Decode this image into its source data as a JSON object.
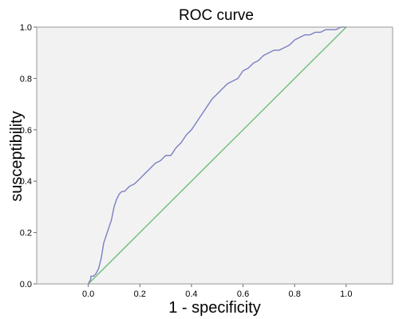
{
  "chart_data": {
    "type": "line",
    "title": "ROC curve",
    "xlabel": "1 - specificity",
    "ylabel": "susceptibility",
    "xlim": [
      -0.2,
      1.18
    ],
    "ylim": [
      0.0,
      1.0
    ],
    "grid": false,
    "x_ticks": [
      "0.0",
      "0.2",
      "0.4",
      "0.6",
      "0.8",
      "1.0"
    ],
    "y_ticks": [
      "0.0",
      "0.2",
      "0.4",
      "0.6",
      "0.8",
      "1.0"
    ],
    "colors": {
      "plot_background": "#f2f2f2",
      "roc_line": "#7b7fc4",
      "reference_line": "#6dbf7a",
      "frame": "#999999"
    },
    "series": [
      {
        "x": [
          0.0,
          0.01,
          0.01,
          0.02,
          0.03,
          0.04,
          0.05,
          0.06,
          0.07,
          0.08,
          0.09,
          0.1,
          0.11,
          0.12,
          0.13,
          0.14,
          0.16,
          0.18,
          0.2,
          0.22,
          0.24,
          0.26,
          0.28,
          0.3,
          0.32,
          0.34,
          0.36,
          0.38,
          0.4,
          0.42,
          0.44,
          0.46,
          0.48,
          0.5,
          0.52,
          0.54,
          0.56,
          0.58,
          0.6,
          0.62,
          0.64,
          0.66,
          0.68,
          0.7,
          0.72,
          0.74,
          0.76,
          0.78,
          0.8,
          0.82,
          0.84,
          0.86,
          0.88,
          0.9,
          0.92,
          0.94,
          0.96,
          0.98,
          1.0
        ],
        "y": [
          0.0,
          0.02,
          0.03,
          0.03,
          0.04,
          0.06,
          0.1,
          0.16,
          0.19,
          0.22,
          0.25,
          0.3,
          0.33,
          0.35,
          0.36,
          0.36,
          0.38,
          0.39,
          0.41,
          0.43,
          0.45,
          0.47,
          0.48,
          0.5,
          0.5,
          0.53,
          0.55,
          0.58,
          0.6,
          0.63,
          0.66,
          0.69,
          0.72,
          0.74,
          0.76,
          0.78,
          0.79,
          0.8,
          0.83,
          0.84,
          0.86,
          0.87,
          0.89,
          0.9,
          0.91,
          0.91,
          0.92,
          0.93,
          0.95,
          0.96,
          0.97,
          0.97,
          0.98,
          0.98,
          0.99,
          0.99,
          0.99,
          1.0,
          1.0
        ]
      },
      {
        "x": [
          0.0,
          1.0
        ],
        "y": [
          0.0,
          1.0
        ]
      }
    ]
  }
}
